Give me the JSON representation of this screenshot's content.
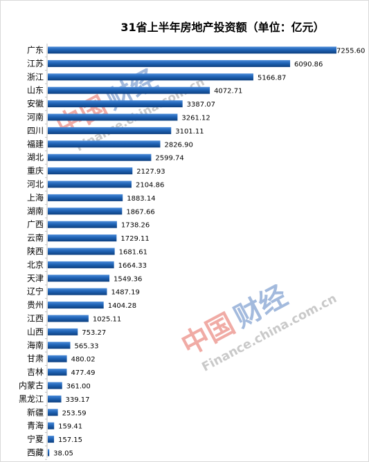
{
  "chart_data": {
    "type": "bar",
    "orientation": "horizontal",
    "title": "31省上半年房地产投资额（单位：亿元）",
    "categories": [
      "广东",
      "江苏",
      "浙江",
      "山东",
      "安徽",
      "河南",
      "四川",
      "福建",
      "湖北",
      "重庆",
      "河北",
      "上海",
      "湖南",
      "广西",
      "云南",
      "陕西",
      "北京",
      "天津",
      "辽宁",
      "贵州",
      "江西",
      "山西",
      "海南",
      "甘肃",
      "吉林",
      "内蒙古",
      "黑龙江",
      "新疆",
      "青海",
      "宁夏",
      "西藏"
    ],
    "values": [
      7255.6,
      6090.86,
      5166.87,
      4072.71,
      3387.07,
      3261.12,
      3101.11,
      2826.9,
      2599.74,
      2127.93,
      2104.86,
      1883.14,
      1867.66,
      1738.26,
      1729.11,
      1681.61,
      1664.33,
      1549.36,
      1487.19,
      1404.28,
      1025.11,
      753.27,
      565.33,
      480.02,
      477.49,
      361.0,
      339.17,
      253.59,
      159.41,
      157.15,
      38.05
    ],
    "value_labels": [
      "7255.60",
      "6090.86",
      "5166.87",
      "4072.71",
      "3387.07",
      "3261.12",
      "3101.11",
      "2826.90",
      "2599.74",
      "2127.93",
      "2104.86",
      "1883.14",
      "1867.66",
      "1738.26",
      "1729.11",
      "1681.61",
      "1664.33",
      "1549.36",
      "1487.19",
      "1404.28",
      "1025.11",
      "753.27",
      "565.33",
      "480.02",
      "477.49",
      "361.00",
      "339.17",
      "253.59",
      "159.41",
      "157.15",
      "38.05"
    ],
    "xlim": [
      0,
      7255.6
    ],
    "grid": false,
    "bar_color": "#1f63b5"
  },
  "watermark": {
    "logo_chars": "中国财经",
    "site": "Finance.china.com.cn",
    "logo_red": "#e0463a",
    "logo_blue": "#3468b4"
  }
}
